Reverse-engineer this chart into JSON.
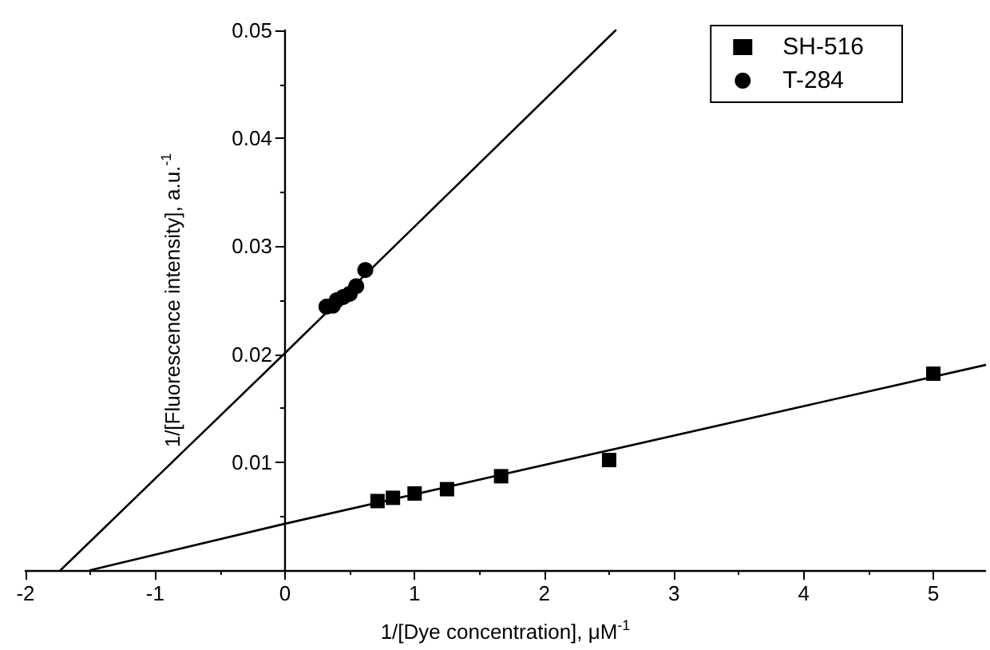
{
  "chart_data": {
    "type": "scatter",
    "xlabel": "1/[Dye concentration], μM$^{-1}$",
    "ylabel": "1/[Fluorescence intensity], a.u.$^{-1}$",
    "xlim": [
      -2,
      5.4
    ],
    "xticks": [
      -2,
      -1,
      0,
      1,
      2,
      3,
      4,
      5
    ],
    "ylim": [
      0,
      0.05
    ],
    "yticks": [
      0.01,
      0.02,
      0.03,
      0.04,
      0.05
    ],
    "grid": false,
    "legend": "top right",
    "series": [
      {
        "name": "SH-516",
        "color": "#000000",
        "marker": "square",
        "x": [
          0.714,
          0.833,
          1,
          1.25,
          1.667,
          2.5,
          5
        ],
        "values": [
          0.0064,
          0.0067,
          0.0071,
          0.0075,
          0.0087,
          0.0102,
          0.0182
        ]
      },
      {
        "name": "T-284",
        "color": "#000000",
        "marker": "circle",
        "x": [
          0.32,
          0.37,
          0.4,
          0.45,
          0.5,
          0.55,
          0.62
        ],
        "values": [
          0.0244,
          0.0245,
          0.025,
          0.0253,
          0.0256,
          0.0263,
          0.0278
        ]
      },
      {
        "type": "line",
        "color": "#000000",
        "marker": "none",
        "x": [
          -1.5,
          0,
          5.4
        ],
        "values": [
          0,
          0.0043,
          0.019
        ]
      },
      {
        "type": "line",
        "color": "#000000",
        "marker": "none",
        "x": [
          -1.73,
          0,
          2.55
        ],
        "values": [
          0,
          0.0201,
          0.05
        ]
      }
    ]
  }
}
